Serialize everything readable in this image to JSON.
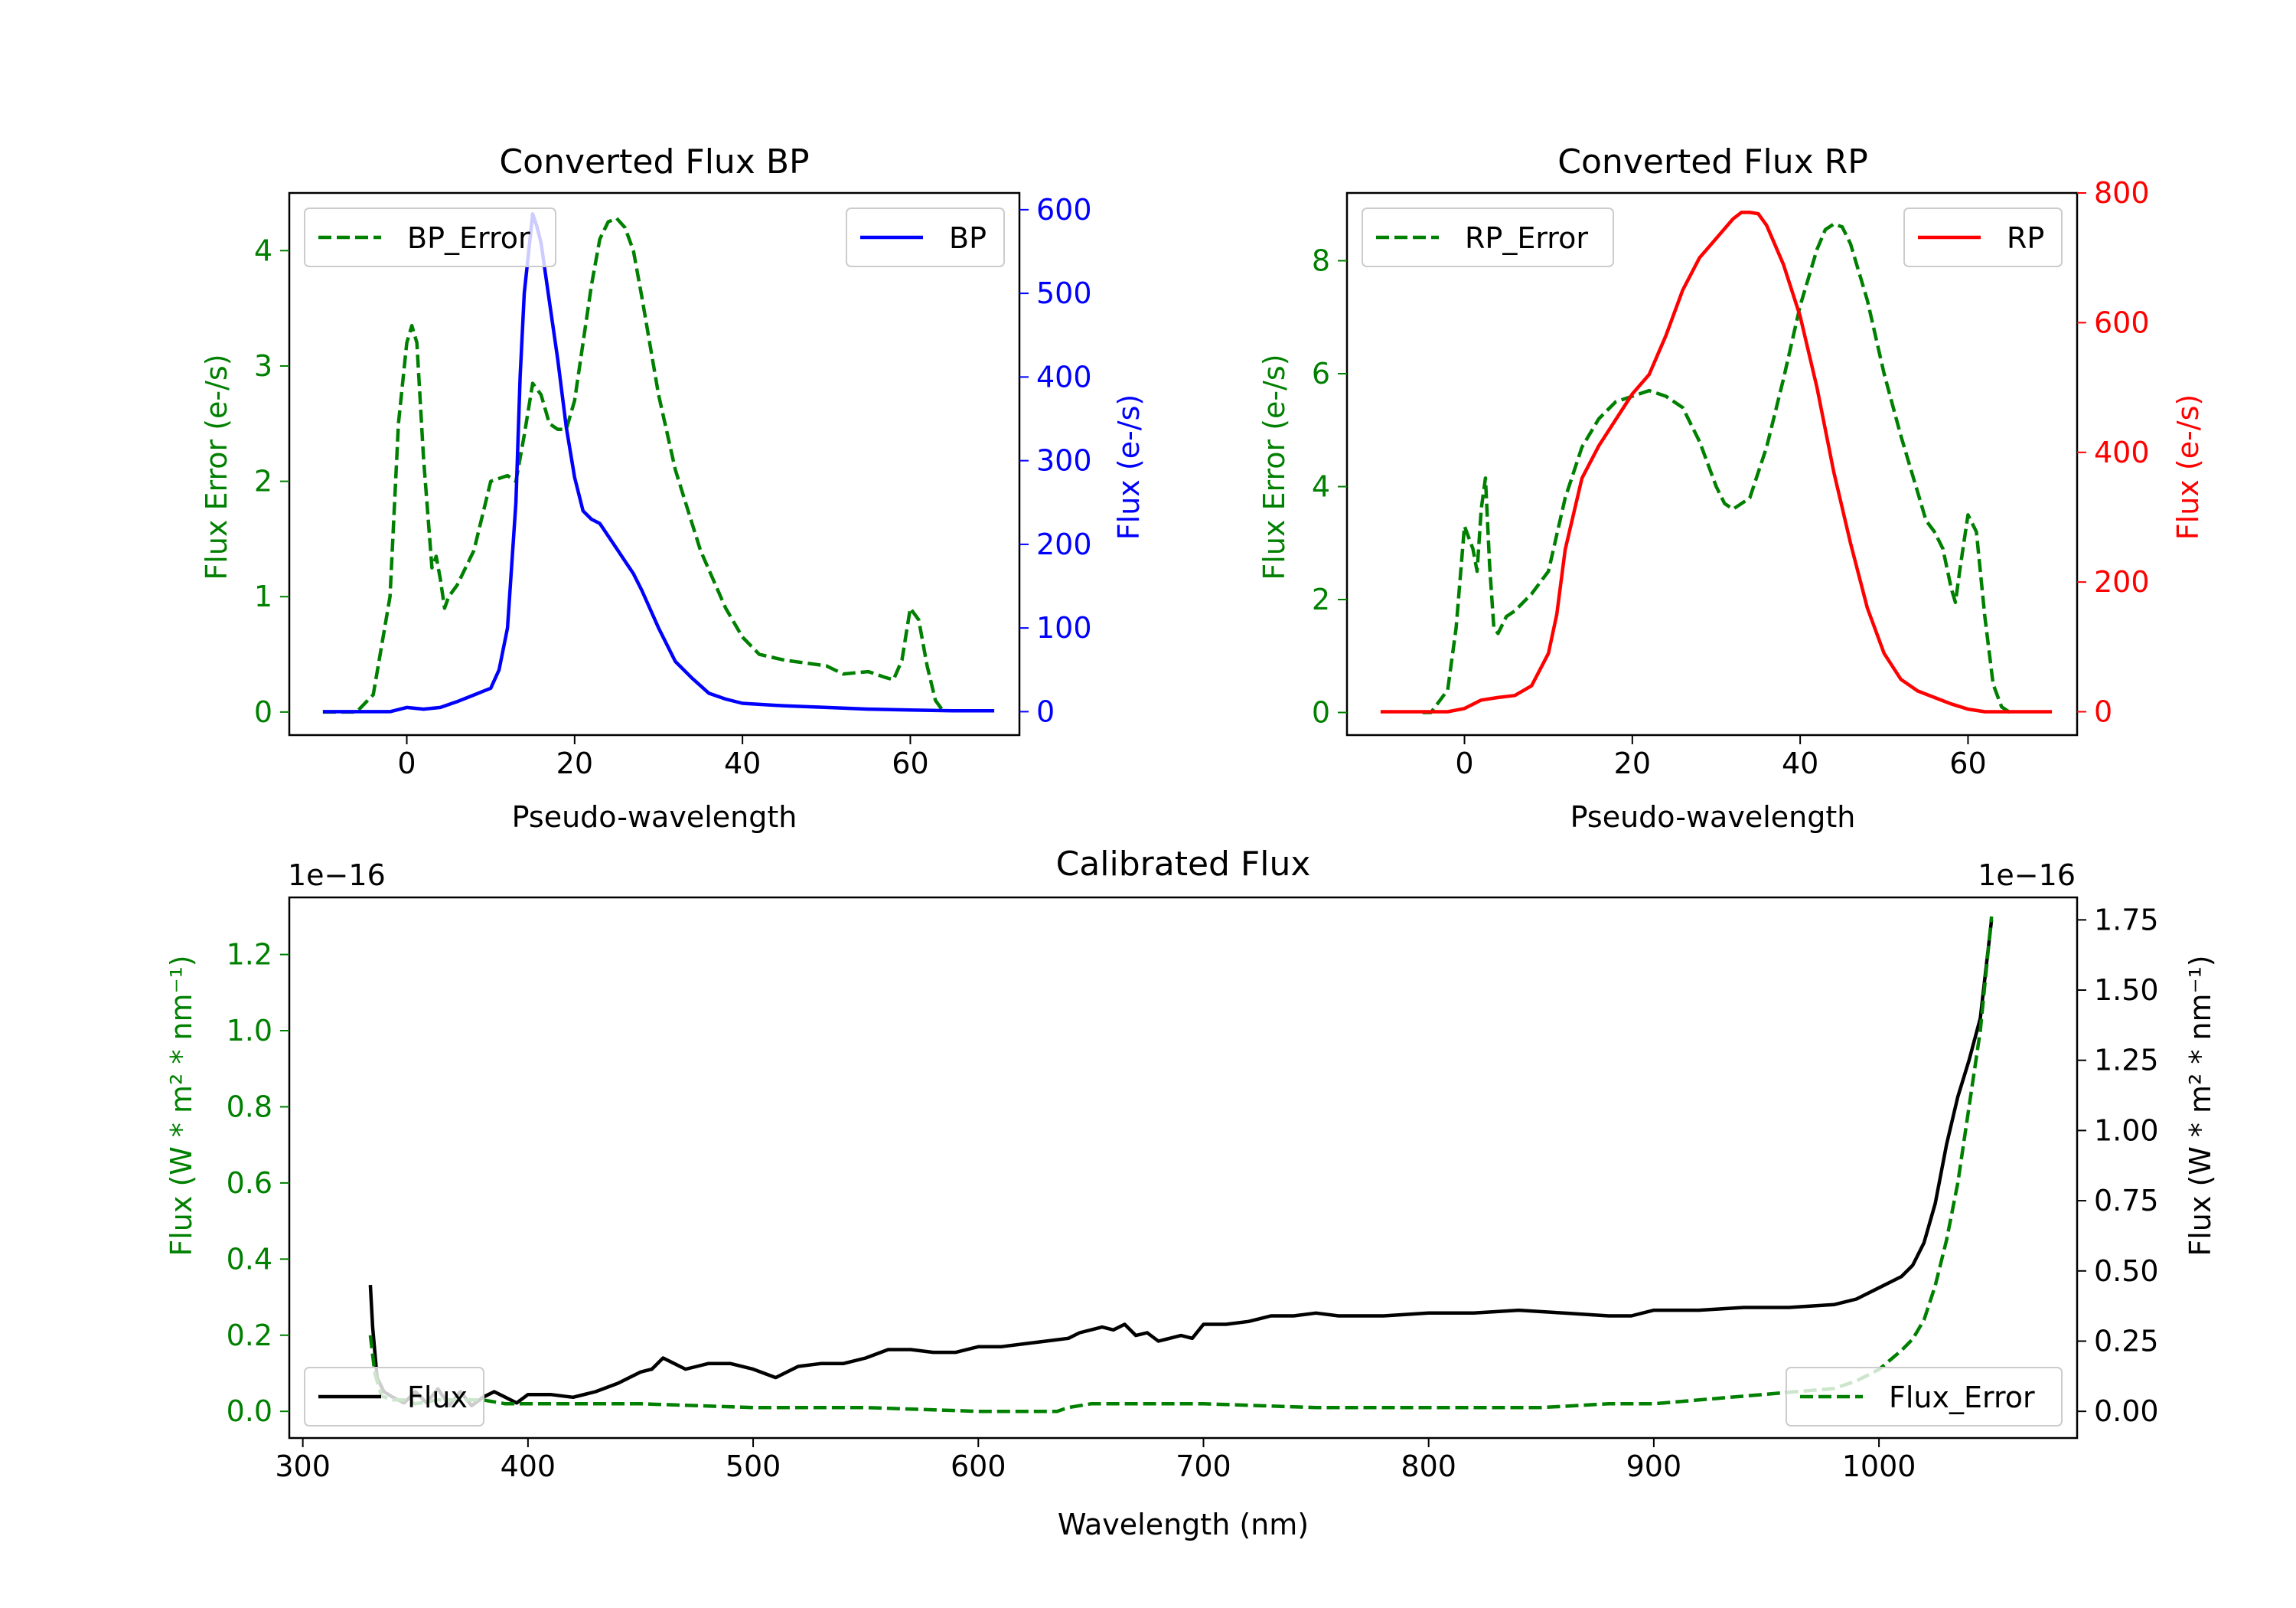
{
  "colors": {
    "bp_error": "#008000",
    "bp": "#0000ff",
    "rp_error": "#008000",
    "rp": "#ff0000",
    "flux": "#000000",
    "flux_error": "#008000",
    "axis": "#000000"
  },
  "chart_data": [
    {
      "id": "bp",
      "type": "line",
      "title": "Converted Flux BP",
      "xlabel": "Pseudo-wavelength",
      "ylabel_left": "Flux Error (e-/s)",
      "ylabel_right": "Flux (e-/s)",
      "xlim": [
        -14,
        73
      ],
      "ylim_left": [
        -0.2,
        4.5
      ],
      "ylim_right": [
        -28,
        620
      ],
      "xticks": [
        0,
        20,
        40,
        60
      ],
      "yticks_left": [
        0,
        1,
        2,
        3,
        4
      ],
      "yticks_right": [
        0,
        100,
        200,
        300,
        400,
        500,
        600
      ],
      "legend_left": {
        "label": "BP_Error",
        "position": "upper left"
      },
      "legend_right": {
        "label": "BP",
        "position": "upper right"
      },
      "series": [
        {
          "name": "BP_Error",
          "axis": "left",
          "style": "dashed",
          "x": [
            -10,
            -6,
            -4,
            -2,
            -1,
            0,
            0.6,
            1.2,
            2,
            3,
            3.5,
            4,
            4.5,
            5,
            6,
            8,
            10,
            12,
            13,
            14,
            15,
            16,
            17,
            18,
            19,
            20,
            21,
            22,
            23,
            24,
            25,
            26,
            27,
            28,
            30,
            32,
            35,
            38,
            40,
            42,
            45,
            50,
            52,
            55,
            57,
            58,
            59,
            60,
            61,
            62,
            63,
            64
          ],
          "y": [
            0,
            0,
            0.15,
            1.0,
            2.5,
            3.2,
            3.35,
            3.2,
            2.2,
            1.25,
            1.35,
            1.15,
            0.9,
            1.0,
            1.1,
            1.4,
            2.0,
            2.05,
            2.0,
            2.4,
            2.85,
            2.75,
            2.5,
            2.45,
            2.45,
            2.7,
            3.2,
            3.7,
            4.1,
            4.25,
            4.28,
            4.2,
            4.0,
            3.6,
            2.75,
            2.1,
            1.4,
            0.9,
            0.65,
            0.5,
            0.45,
            0.4,
            0.33,
            0.35,
            0.3,
            0.28,
            0.45,
            0.9,
            0.8,
            0.4,
            0.1,
            0
          ]
        },
        {
          "name": "BP",
          "axis": "right",
          "style": "solid",
          "x": [
            -10,
            -2,
            0,
            2,
            4,
            6,
            8,
            10,
            11,
            12,
            13,
            13.5,
            14,
            15,
            15.5,
            16,
            17,
            18,
            19,
            20,
            21,
            22,
            23,
            24,
            25,
            26,
            27,
            28,
            30,
            32,
            34,
            36,
            38,
            40,
            45,
            50,
            55,
            60,
            65,
            70
          ],
          "y": [
            0,
            0,
            5,
            3,
            5,
            12,
            20,
            28,
            50,
            100,
            250,
            400,
            500,
            595,
            580,
            560,
            490,
            420,
            340,
            280,
            240,
            230,
            225,
            210,
            195,
            180,
            165,
            145,
            100,
            60,
            40,
            22,
            15,
            10,
            7,
            5,
            3,
            2,
            1,
            1
          ]
        }
      ]
    },
    {
      "id": "rp",
      "type": "line",
      "title": "Converted Flux RP",
      "xlabel": "Pseudo-wavelength",
      "ylabel_left": "Flux Error (e-/s)",
      "ylabel_right": "Flux (e-/s)",
      "xlim": [
        -14,
        73
      ],
      "ylim_left": [
        -0.4,
        9.2
      ],
      "ylim_right": [
        -36,
        800
      ],
      "xticks": [
        0,
        20,
        40,
        60
      ],
      "yticks_left": [
        0,
        2,
        4,
        6,
        8
      ],
      "yticks_right": [
        0,
        200,
        400,
        600,
        800
      ],
      "legend_left": {
        "label": "RP_Error",
        "position": "upper left"
      },
      "legend_right": {
        "label": "RP",
        "position": "upper right"
      },
      "series": [
        {
          "name": "RP_Error",
          "axis": "left",
          "style": "dashed",
          "x": [
            -5,
            -4,
            -2,
            -1,
            0,
            1,
            1.5,
            2,
            2.5,
            3,
            3.5,
            4,
            5,
            6,
            8,
            10,
            12,
            14,
            16,
            18,
            20,
            22,
            24,
            26,
            28,
            30,
            31,
            32,
            34,
            36,
            38,
            40,
            42,
            43,
            44,
            45,
            46,
            48,
            50,
            52,
            54,
            55,
            56,
            57,
            58,
            58.5,
            59,
            60,
            61,
            62,
            63,
            64,
            65
          ],
          "y": [
            0,
            0,
            0.4,
            1.5,
            3.3,
            2.9,
            2.5,
            3.6,
            4.15,
            2.6,
            1.5,
            1.4,
            1.7,
            1.8,
            2.1,
            2.5,
            3.8,
            4.7,
            5.2,
            5.5,
            5.6,
            5.7,
            5.6,
            5.4,
            4.8,
            4.0,
            3.7,
            3.6,
            3.8,
            4.7,
            5.9,
            7.2,
            8.2,
            8.55,
            8.65,
            8.6,
            8.3,
            7.3,
            6.0,
            4.9,
            3.9,
            3.4,
            3.2,
            2.9,
            2.2,
            1.95,
            2.5,
            3.5,
            3.2,
            1.7,
            0.5,
            0.1,
            0
          ]
        },
        {
          "name": "RP",
          "axis": "right",
          "style": "solid",
          "x": [
            -10,
            -2,
            0,
            2,
            4,
            6,
            8,
            10,
            11,
            12,
            14,
            16,
            18,
            20,
            22,
            24,
            26,
            28,
            30,
            32,
            33,
            34,
            35,
            36,
            38,
            40,
            42,
            44,
            46,
            48,
            50,
            52,
            54,
            56,
            58,
            60,
            62,
            65,
            70
          ],
          "y": [
            0,
            0,
            5,
            18,
            22,
            25,
            40,
            90,
            150,
            250,
            360,
            410,
            450,
            490,
            520,
            580,
            650,
            700,
            730,
            760,
            770,
            770,
            768,
            750,
            690,
            610,
            500,
            370,
            260,
            160,
            90,
            50,
            32,
            22,
            12,
            4,
            0,
            0,
            0
          ]
        }
      ]
    },
    {
      "id": "calibrated",
      "type": "line",
      "title": "Calibrated Flux",
      "xlabel": "Wavelength (nm)",
      "ylabel_left": "Flux (W * m² * nm⁻¹)",
      "ylabel_right": "Flux (W * m² * nm⁻¹)",
      "offset_left": "1e−16",
      "offset_right": "1e−16",
      "xlim": [
        294,
        1088
      ],
      "ylim_left": [
        -0.07,
        1.35
      ],
      "ylim_right": [
        -0.095,
        1.83
      ],
      "xticks": [
        300,
        400,
        500,
        600,
        700,
        800,
        900,
        1000
      ],
      "yticks_left": [
        0.0,
        0.2,
        0.4,
        0.6,
        0.8,
        1.0,
        1.2
      ],
      "yticks_right": [
        0.0,
        0.25,
        0.5,
        0.75,
        1.0,
        1.25,
        1.5,
        1.75
      ],
      "legend_left": {
        "label": "Flux",
        "position": "lower left"
      },
      "legend_right": {
        "label": "Flux_Error",
        "position": "lower right"
      },
      "series": [
        {
          "name": "Flux",
          "axis": "right",
          "style": "solid",
          "x": [
            330,
            331,
            333,
            336,
            340,
            345,
            350,
            355,
            360,
            365,
            370,
            375,
            380,
            385,
            390,
            395,
            400,
            410,
            420,
            430,
            440,
            450,
            455,
            460,
            465,
            470,
            475,
            480,
            490,
            500,
            510,
            520,
            530,
            540,
            550,
            560,
            570,
            580,
            590,
            600,
            610,
            620,
            630,
            640,
            645,
            650,
            655,
            660,
            665,
            670,
            675,
            680,
            685,
            690,
            695,
            700,
            710,
            720,
            730,
            740,
            750,
            760,
            780,
            800,
            820,
            840,
            860,
            880,
            890,
            900,
            920,
            940,
            960,
            980,
            990,
            1000,
            1010,
            1015,
            1020,
            1025,
            1030,
            1035,
            1040,
            1045,
            1050
          ],
          "y": [
            0.45,
            0.3,
            0.12,
            0.07,
            0.05,
            0.03,
            0.07,
            0.03,
            0.08,
            0.02,
            0.07,
            0.02,
            0.05,
            0.07,
            0.05,
            0.03,
            0.06,
            0.06,
            0.05,
            0.07,
            0.1,
            0.14,
            0.15,
            0.19,
            0.17,
            0.15,
            0.16,
            0.17,
            0.17,
            0.15,
            0.12,
            0.16,
            0.17,
            0.17,
            0.19,
            0.22,
            0.22,
            0.21,
            0.21,
            0.23,
            0.23,
            0.24,
            0.25,
            0.26,
            0.28,
            0.29,
            0.3,
            0.29,
            0.31,
            0.27,
            0.28,
            0.25,
            0.26,
            0.27,
            0.26,
            0.31,
            0.31,
            0.32,
            0.34,
            0.34,
            0.35,
            0.34,
            0.34,
            0.35,
            0.35,
            0.36,
            0.35,
            0.34,
            0.34,
            0.36,
            0.36,
            0.37,
            0.37,
            0.38,
            0.4,
            0.44,
            0.48,
            0.52,
            0.6,
            0.74,
            0.95,
            1.12,
            1.25,
            1.4,
            1.75
          ]
        },
        {
          "name": "Flux_Error",
          "axis": "left",
          "style": "dashed",
          "x": [
            330,
            332,
            335,
            340,
            345,
            350,
            360,
            370,
            380,
            390,
            400,
            450,
            500,
            550,
            600,
            620,
            635,
            640,
            650,
            700,
            750,
            800,
            850,
            880,
            900,
            920,
            940,
            960,
            980,
            990,
            1000,
            1010,
            1015,
            1020,
            1025,
            1030,
            1035,
            1040,
            1045,
            1050
          ],
          "y": [
            0.2,
            0.1,
            0.04,
            0.03,
            0.03,
            0.02,
            0.03,
            0.03,
            0.03,
            0.02,
            0.02,
            0.02,
            0.01,
            0.01,
            0.0,
            0.0,
            0.0,
            0.01,
            0.02,
            0.02,
            0.01,
            0.01,
            0.01,
            0.02,
            0.02,
            0.03,
            0.04,
            0.05,
            0.06,
            0.08,
            0.11,
            0.16,
            0.19,
            0.24,
            0.33,
            0.45,
            0.6,
            0.8,
            1.0,
            1.3
          ]
        }
      ]
    }
  ]
}
